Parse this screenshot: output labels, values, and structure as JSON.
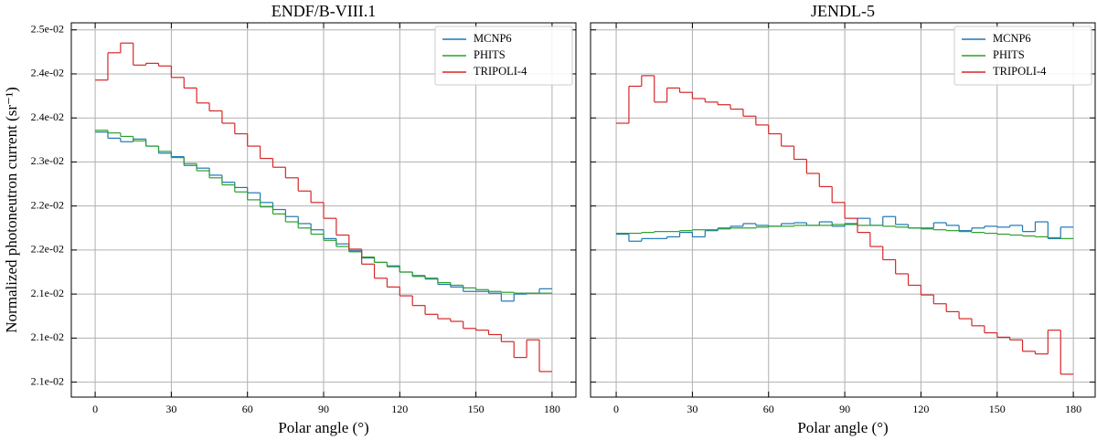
{
  "chart_data": [
    {
      "type": "histogram",
      "title": "ENDF/B-VIII.1",
      "xlabel": "Polar angle (°)",
      "ylabel": "Normalized photoneutron current (sr⁻¹)",
      "bins": [
        0,
        5,
        10,
        15,
        20,
        25,
        30,
        35,
        40,
        45,
        50,
        55,
        60,
        65,
        70,
        75,
        80,
        85,
        90,
        95,
        100,
        105,
        110,
        115,
        120,
        125,
        130,
        135,
        140,
        145,
        150,
        155,
        160,
        165,
        170,
        175,
        180
      ],
      "xlim": [
        -9.4,
        189.4
      ],
      "xticks": [
        0,
        30,
        60,
        90,
        120,
        150,
        180
      ],
      "ylim": [
        0.02033,
        0.02458
      ],
      "yticks": [
        {
          "value": 0.0245,
          "label": "2.5e-02"
        },
        {
          "value": 0.024,
          "label": "2.4e-02"
        },
        {
          "value": 0.0235,
          "label": "2.4e-02"
        },
        {
          "value": 0.023,
          "label": "2.3e-02"
        },
        {
          "value": 0.0225,
          "label": "2.2e-02"
        },
        {
          "value": 0.022,
          "label": "2.2e-02"
        },
        {
          "value": 0.0215,
          "label": "2.1e-02"
        },
        {
          "value": 0.021,
          "label": "2.1e-02"
        },
        {
          "value": 0.0205,
          "label": "2.1e-02"
        }
      ],
      "grid": true,
      "legend": "upper right",
      "series": [
        {
          "name": "MCNP6",
          "color": "#1f77b4",
          "values": [
            0.02334,
            0.02327,
            0.02323,
            0.02326,
            0.02318,
            0.0231,
            0.02306,
            0.02296,
            0.02293,
            0.02285,
            0.02277,
            0.02271,
            0.02265,
            0.02254,
            0.02246,
            0.02238,
            0.0223,
            0.02223,
            0.02213,
            0.02207,
            0.02199,
            0.02191,
            0.02186,
            0.02182,
            0.02175,
            0.02171,
            0.02168,
            0.02161,
            0.02158,
            0.02153,
            0.02153,
            0.02151,
            0.02142,
            0.0215,
            0.02151,
            0.02156
          ]
        },
        {
          "name": "PHITS",
          "color": "#2ca02c",
          "values": [
            0.02336,
            0.02333,
            0.02329,
            0.02324,
            0.02318,
            0.02312,
            0.02305,
            0.02298,
            0.0229,
            0.02282,
            0.02274,
            0.02266,
            0.02257,
            0.02249,
            0.02241,
            0.02232,
            0.02225,
            0.02218,
            0.02211,
            0.02204,
            0.02198,
            0.02192,
            0.02186,
            0.02181,
            0.02175,
            0.0217,
            0.02167,
            0.02163,
            0.0216,
            0.02157,
            0.02155,
            0.02153,
            0.02152,
            0.02151,
            0.02151,
            0.02151
          ]
        },
        {
          "name": "TRIPOLI-4",
          "color": "#d62728",
          "values": [
            0.02393,
            0.02424,
            0.02435,
            0.0241,
            0.02412,
            0.02409,
            0.02396,
            0.02384,
            0.02367,
            0.02358,
            0.02344,
            0.02332,
            0.02318,
            0.02304,
            0.02294,
            0.02282,
            0.02267,
            0.02254,
            0.02236,
            0.02217,
            0.02201,
            0.02184,
            0.02168,
            0.02158,
            0.02148,
            0.02137,
            0.02127,
            0.02122,
            0.02119,
            0.02111,
            0.02109,
            0.02104,
            0.02096,
            0.02078,
            0.02098,
            0.02062
          ]
        }
      ]
    },
    {
      "type": "histogram",
      "title": "JENDL-5",
      "xlabel": "Polar angle (°)",
      "bins": [
        0,
        5,
        10,
        15,
        20,
        25,
        30,
        35,
        40,
        45,
        50,
        55,
        60,
        65,
        70,
        75,
        80,
        85,
        90,
        95,
        100,
        105,
        110,
        115,
        120,
        125,
        130,
        135,
        140,
        145,
        150,
        155,
        160,
        165,
        170,
        175,
        180
      ],
      "xlim": [
        -10.1,
        188.6
      ],
      "xticks": [
        0,
        30,
        60,
        90,
        120,
        150,
        180
      ],
      "ylim": [
        0.02033,
        0.02458
      ],
      "yticks": [
        0.0245,
        0.024,
        0.0235,
        0.023,
        0.0225,
        0.022,
        0.0215,
        0.021,
        0.0205
      ],
      "ytick_labels": false,
      "grid": true,
      "legend": "upper right",
      "series": [
        {
          "name": "MCNP6",
          "color": "#1f77b4",
          "values": [
            0.02218,
            0.0221,
            0.02213,
            0.02213,
            0.02215,
            0.0222,
            0.02215,
            0.02222,
            0.02225,
            0.02227,
            0.0223,
            0.02228,
            0.02227,
            0.0223,
            0.02231,
            0.02228,
            0.02232,
            0.02227,
            0.0223,
            0.02236,
            0.02228,
            0.02238,
            0.02229,
            0.02225,
            0.02225,
            0.02231,
            0.02228,
            0.02222,
            0.02225,
            0.02227,
            0.02226,
            0.02228,
            0.02221,
            0.02232,
            0.02213,
            0.02226
          ]
        },
        {
          "name": "PHITS",
          "color": "#2ca02c",
          "values": [
            0.02219,
            0.02219,
            0.0222,
            0.02221,
            0.02221,
            0.02222,
            0.02223,
            0.02223,
            0.02224,
            0.02225,
            0.02225,
            0.02226,
            0.02227,
            0.02227,
            0.02228,
            0.02228,
            0.02228,
            0.02229,
            0.02229,
            0.02228,
            0.02228,
            0.02227,
            0.02226,
            0.02225,
            0.02224,
            0.02223,
            0.02222,
            0.02221,
            0.0222,
            0.02219,
            0.02218,
            0.02217,
            0.02216,
            0.02215,
            0.02214,
            0.02213
          ]
        },
        {
          "name": "TRIPOLI-4",
          "color": "#d62728",
          "values": [
            0.02344,
            0.02386,
            0.02398,
            0.02368,
            0.02384,
            0.02379,
            0.02372,
            0.02368,
            0.02365,
            0.0236,
            0.02352,
            0.02342,
            0.02332,
            0.02318,
            0.02303,
            0.02287,
            0.02272,
            0.02254,
            0.02236,
            0.0222,
            0.02204,
            0.02189,
            0.02173,
            0.0216,
            0.02149,
            0.02139,
            0.0213,
            0.02122,
            0.02114,
            0.02106,
            0.02101,
            0.02098,
            0.02085,
            0.02082,
            0.02109,
            0.02059
          ]
        }
      ]
    }
  ]
}
